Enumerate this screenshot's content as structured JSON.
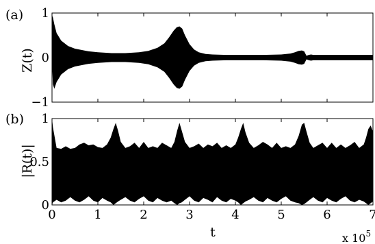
{
  "chart_data": [
    {
      "type": "line",
      "panel_label": "(a)",
      "ylabel": "Z(t)",
      "xlim": [
        0,
        7
      ],
      "ylim": [
        -1,
        1
      ],
      "yticks": [
        {
          "value": 1,
          "label": "1"
        },
        {
          "value": 0,
          "label": "0"
        },
        {
          "value": -1,
          "label": "−1"
        }
      ],
      "series": [
        {
          "envelope_x": [
            0,
            0.02,
            0.05,
            0.1,
            0.2,
            0.35,
            0.5,
            0.8,
            1.0,
            1.3,
            1.6,
            1.9,
            2.1,
            2.3,
            2.45,
            2.55,
            2.65,
            2.72,
            2.78,
            2.84,
            2.9,
            3.0,
            3.1,
            3.2,
            3.35,
            3.5,
            3.8,
            4.2,
            4.6,
            5.0,
            5.2,
            5.3,
            5.38,
            5.45,
            5.5,
            5.55,
            5.6,
            5.65,
            5.7,
            5.8,
            6.0,
            6.2,
            6.5,
            6.8,
            7.0
          ],
          "envelope_upper": [
            0.95,
            0.9,
            0.75,
            0.55,
            0.38,
            0.26,
            0.2,
            0.14,
            0.12,
            0.1,
            0.1,
            0.12,
            0.15,
            0.22,
            0.32,
            0.45,
            0.6,
            0.68,
            0.7,
            0.65,
            0.5,
            0.3,
            0.18,
            0.12,
            0.08,
            0.07,
            0.06,
            0.06,
            0.06,
            0.07,
            0.09,
            0.12,
            0.15,
            0.16,
            0.14,
            0.04,
            0.06,
            0.07,
            0.06,
            0.06,
            0.06,
            0.06,
            0.06,
            0.06,
            0.06
          ],
          "envelope_lower": [
            -0.12,
            -0.6,
            -0.7,
            -0.55,
            -0.38,
            -0.26,
            -0.2,
            -0.14,
            -0.12,
            -0.1,
            -0.1,
            -0.12,
            -0.15,
            -0.22,
            -0.32,
            -0.45,
            -0.6,
            -0.68,
            -0.7,
            -0.65,
            -0.5,
            -0.3,
            -0.18,
            -0.12,
            -0.08,
            -0.07,
            -0.06,
            -0.06,
            -0.06,
            -0.07,
            -0.09,
            -0.12,
            -0.15,
            -0.16,
            -0.14,
            -0.04,
            -0.06,
            -0.07,
            -0.06,
            -0.06,
            -0.06,
            -0.06,
            -0.06,
            -0.06,
            -0.06
          ]
        }
      ]
    },
    {
      "type": "line",
      "panel_label": "(b)",
      "ylabel": "|R(t)|",
      "xlabel": "t",
      "x_multiplier": "x 10",
      "x_multiplier_exponent": "5",
      "xlim": [
        0,
        7
      ],
      "ylim": [
        0,
        1
      ],
      "xticks": [
        {
          "value": 0,
          "label": "0"
        },
        {
          "value": 1,
          "label": "1"
        },
        {
          "value": 2,
          "label": "2"
        },
        {
          "value": 3,
          "label": "3"
        },
        {
          "value": 4,
          "label": "4"
        },
        {
          "value": 5,
          "label": "5"
        },
        {
          "value": 6,
          "label": "6"
        },
        {
          "value": 7,
          "label": "7"
        }
      ],
      "yticks": [
        {
          "value": 1,
          "label": "1"
        },
        {
          "value": 0.5,
          "label": "0.5"
        },
        {
          "value": 0,
          "label": "0"
        }
      ],
      "series": [
        {
          "envelope_x": [
            0,
            0.02,
            0.1,
            0.2,
            0.3,
            0.4,
            0.5,
            0.6,
            0.7,
            0.8,
            0.9,
            1.0,
            1.1,
            1.2,
            1.28,
            1.34,
            1.39,
            1.44,
            1.5,
            1.6,
            1.7,
            1.8,
            1.9,
            2.0,
            2.1,
            2.2,
            2.3,
            2.4,
            2.5,
            2.6,
            2.67,
            2.73,
            2.78,
            2.83,
            2.9,
            3.0,
            3.1,
            3.2,
            3.3,
            3.4,
            3.5,
            3.6,
            3.7,
            3.8,
            3.9,
            4.0,
            4.06,
            4.12,
            4.17,
            4.22,
            4.3,
            4.4,
            4.5,
            4.6,
            4.7,
            4.8,
            4.9,
            5.0,
            5.1,
            5.2,
            5.3,
            5.38,
            5.45,
            5.5,
            5.55,
            5.62,
            5.7,
            5.8,
            5.9,
            6.0,
            6.1,
            6.2,
            6.3,
            6.4,
            6.5,
            6.6,
            6.7,
            6.8,
            6.85,
            6.9,
            6.95,
            7.0
          ],
          "envelope_upper": [
            1.0,
            0.9,
            0.66,
            0.65,
            0.68,
            0.65,
            0.66,
            0.7,
            0.72,
            0.69,
            0.7,
            0.67,
            0.66,
            0.7,
            0.78,
            0.88,
            0.95,
            0.86,
            0.73,
            0.66,
            0.68,
            0.72,
            0.66,
            0.73,
            0.66,
            0.68,
            0.66,
            0.72,
            0.69,
            0.66,
            0.73,
            0.86,
            0.95,
            0.86,
            0.73,
            0.66,
            0.68,
            0.71,
            0.66,
            0.7,
            0.68,
            0.72,
            0.66,
            0.69,
            0.66,
            0.7,
            0.78,
            0.88,
            0.95,
            0.84,
            0.72,
            0.66,
            0.69,
            0.73,
            0.7,
            0.66,
            0.72,
            0.66,
            0.68,
            0.66,
            0.7,
            0.8,
            0.93,
            0.95,
            0.85,
            0.72,
            0.66,
            0.69,
            0.72,
            0.66,
            0.72,
            0.66,
            0.7,
            0.66,
            0.69,
            0.73,
            0.66,
            0.7,
            0.78,
            0.88,
            0.92,
            0.85
          ],
          "envelope_lower": [
            0.0,
            0.03,
            0.06,
            0.03,
            0.05,
            0.09,
            0.05,
            0.03,
            0.06,
            0.1,
            0.05,
            0.03,
            0.08,
            0.05,
            0.03,
            0.0,
            0.02,
            0.04,
            0.06,
            0.09,
            0.05,
            0.03,
            0.07,
            0.1,
            0.05,
            0.03,
            0.08,
            0.05,
            0.03,
            0.05,
            0.02,
            0.0,
            0.02,
            0.03,
            0.06,
            0.1,
            0.05,
            0.03,
            0.08,
            0.06,
            0.03,
            0.09,
            0.05,
            0.03,
            0.07,
            0.05,
            0.03,
            0.0,
            0.02,
            0.04,
            0.06,
            0.09,
            0.05,
            0.03,
            0.08,
            0.05,
            0.03,
            0.07,
            0.1,
            0.05,
            0.03,
            0.02,
            0.0,
            0.01,
            0.03,
            0.06,
            0.09,
            0.05,
            0.03,
            0.08,
            0.05,
            0.03,
            0.07,
            0.1,
            0.05,
            0.03,
            0.06,
            0.04,
            0.02,
            0.0,
            0.02,
            0.04
          ]
        }
      ]
    }
  ]
}
